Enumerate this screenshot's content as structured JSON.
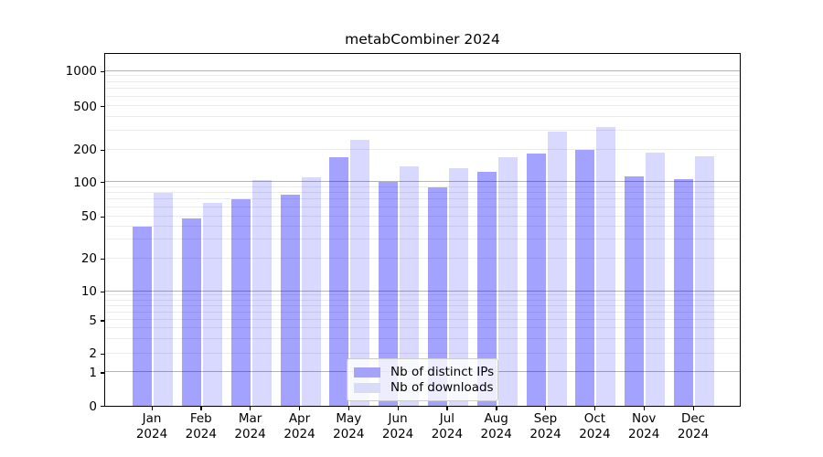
{
  "title": "metabCombiner 2024",
  "y_axis": {
    "tick_labels": [
      "0",
      "1",
      "2",
      "5",
      "10",
      "20",
      "50",
      "100",
      "200",
      "500",
      "1000"
    ]
  },
  "x_axis": {
    "categories": [
      "Jan 2024",
      "Feb 2024",
      "Mar 2024",
      "Apr 2024",
      "May 2024",
      "Jun 2024",
      "Jul 2024",
      "Aug 2024",
      "Sep 2024",
      "Oct 2024",
      "Nov 2024",
      "Dec 2024"
    ]
  },
  "legend": {
    "items": [
      {
        "label": "Nb of distinct IPs",
        "swatch_color": "#a3a3f7"
      },
      {
        "label": "Nb of downloads",
        "swatch_color": "#dadaf9"
      }
    ]
  },
  "colors": {
    "series_dark": "#a3a3f7",
    "series_light": "#dadaf9",
    "major_grid": "#b3b3b3",
    "minor_grid": "#ebebeb"
  },
  "chart_data": {
    "type": "bar",
    "title": "metabCombiner 2024",
    "xlabel": "",
    "ylabel": "",
    "categories": [
      "Jan 2024",
      "Feb 2024",
      "Mar 2024",
      "Apr 2024",
      "May 2024",
      "Jun 2024",
      "Jul 2024",
      "Aug 2024",
      "Sep 2024",
      "Oct 2024",
      "Nov 2024",
      "Dec 2024"
    ],
    "series": [
      {
        "name": "Nb of distinct IPs",
        "values": [
          40,
          48,
          70,
          77,
          170,
          100,
          90,
          124,
          185,
          197,
          112,
          107
        ]
      },
      {
        "name": "Nb of downloads",
        "values": [
          80,
          65,
          104,
          110,
          246,
          140,
          135,
          170,
          290,
          320,
          188,
          174
        ]
      }
    ],
    "y_scale": "symlog",
    "y_ticks": [
      0,
      1,
      2,
      5,
      10,
      20,
      50,
      100,
      200,
      500,
      1000
    ],
    "ylim": [
      0,
      1150
    ],
    "grid": "horizontal, major and minor",
    "legend_position": "lower center"
  }
}
